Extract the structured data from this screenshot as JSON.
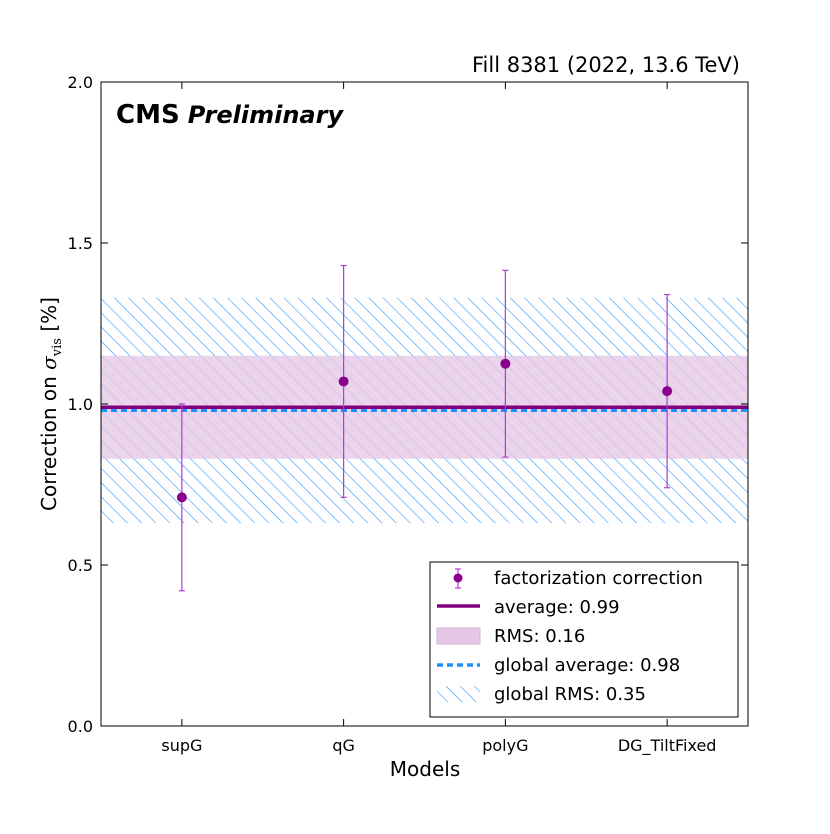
{
  "chart_data": {
    "type": "scatter",
    "top_label": "Fill 8381 (2022, 13.6 TeV)",
    "experiment": "CMS",
    "status": "Preliminary",
    "xlabel": "Models",
    "ylabel_prefix": "Correction on ",
    "ylabel_symbol": "σ",
    "ylabel_subscript": "vis",
    "ylabel_suffix": " [%]",
    "ylim": [
      0.0,
      2.0
    ],
    "yticks": [
      "0.0",
      "0.5",
      "1.0",
      "1.5",
      "2.0"
    ],
    "ytick_values": [
      0.0,
      0.5,
      1.0,
      1.5,
      2.0
    ],
    "categories": [
      "supG",
      "qG",
      "polyG",
      "DG_TiltFixed"
    ],
    "series": [
      {
        "name": "factorization correction",
        "values": [
          0.71,
          1.07,
          1.125,
          1.04
        ],
        "err_low": [
          0.42,
          0.71,
          0.835,
          0.74
        ],
        "err_high": [
          1.0,
          1.43,
          1.415,
          1.34
        ]
      }
    ],
    "average": 0.99,
    "rms": 0.16,
    "global_average": 0.98,
    "global_rms": 0.35,
    "legend": [
      "factorization correction",
      "average: 0.99",
      "RMS: 0.16",
      "global average: 0.98",
      "global RMS: 0.35"
    ],
    "colors": {
      "points": "#8b008b",
      "error_bars": "#b23ad3",
      "average_line": "#800080",
      "rms_fill": "#e6c8e6",
      "global_line": "#1e90ff",
      "global_hatch": "#1e90ff"
    }
  }
}
